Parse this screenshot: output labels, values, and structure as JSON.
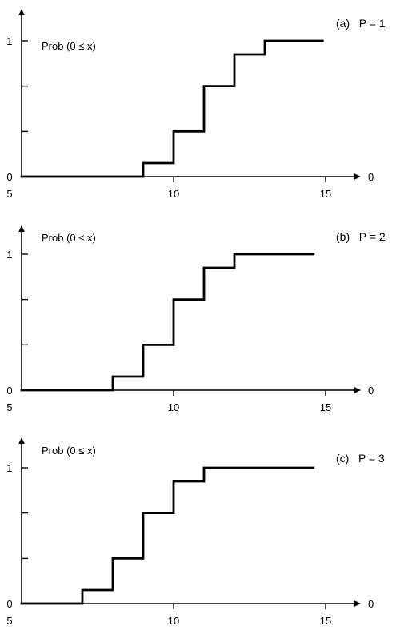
{
  "chart_data": [
    {
      "type": "line",
      "step": "post",
      "title": "(a)   P = 1",
      "ylabel": "Prob (0 ≤ x)",
      "xlabel": "0",
      "xlim": [
        5,
        16
      ],
      "ylim": [
        0,
        1
      ],
      "xticks": [
        5,
        10,
        15
      ],
      "yticks": [
        0,
        0.333,
        0.667,
        1
      ],
      "ytick_labels": [
        "0",
        "",
        "",
        "1"
      ],
      "x": [
        5,
        9,
        10,
        11,
        12,
        13,
        14.9
      ],
      "y": [
        0,
        0.1,
        0.333,
        0.667,
        0.9,
        1,
        1
      ]
    },
    {
      "type": "line",
      "step": "post",
      "title": "(b)   P = 2",
      "ylabel": "Prob (0 ≤ x)",
      "xlabel": "0",
      "xlim": [
        5,
        16
      ],
      "ylim": [
        0,
        1
      ],
      "xticks": [
        5,
        10,
        15
      ],
      "yticks": [
        0,
        0.333,
        0.667,
        1
      ],
      "ytick_labels": [
        "0",
        "",
        "",
        "1"
      ],
      "x": [
        5,
        8,
        9,
        10,
        11,
        12,
        14.6
      ],
      "y": [
        0,
        0.1,
        0.333,
        0.667,
        0.9,
        1,
        1
      ]
    },
    {
      "type": "line",
      "step": "post",
      "title": "(c)   P = 3",
      "ylabel": "Prob (0 ≤ x)",
      "xlabel": "0",
      "xlim": [
        5,
        16
      ],
      "ylim": [
        0,
        1
      ],
      "xticks": [
        5,
        10,
        15
      ],
      "yticks": [
        0,
        0.333,
        0.667,
        1
      ],
      "ytick_labels": [
        "0",
        "",
        "",
        "1"
      ],
      "x": [
        5,
        7,
        8,
        9,
        10,
        11,
        14.6
      ],
      "y": [
        0,
        0.1,
        0.333,
        0.667,
        0.9,
        1,
        1
      ]
    }
  ]
}
